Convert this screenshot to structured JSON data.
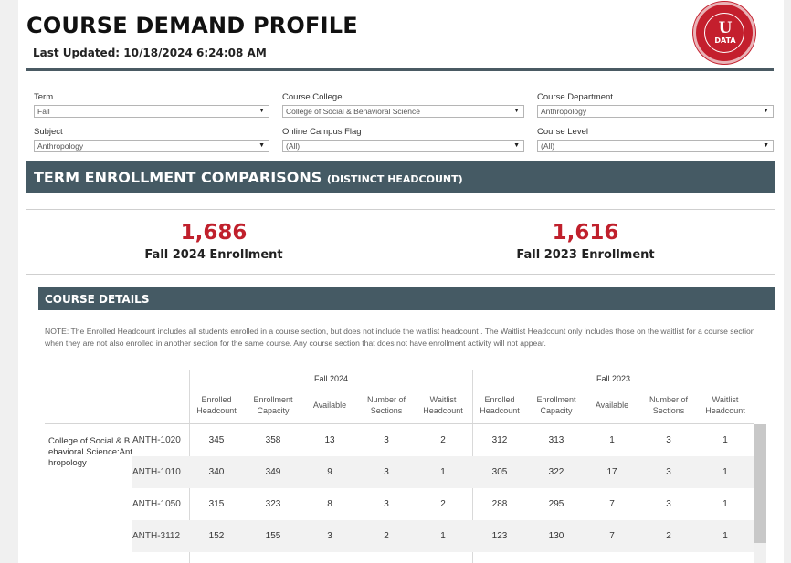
{
  "header": {
    "title": "COURSE DEMAND PROFILE",
    "last_updated": "Last Updated: 10/18/2024 6:24:08 AM",
    "logo": {
      "icon": "university-data-seal-icon",
      "letter": "U",
      "text": "DATA",
      "color": "#c41f2d"
    }
  },
  "filters": [
    {
      "label": "Term",
      "value": "Fall"
    },
    {
      "label": "Course College",
      "value": "College of Social & Behavioral Science"
    },
    {
      "label": "Course Department",
      "value": "Anthropology"
    },
    {
      "label": "Subject",
      "value": "Anthropology"
    },
    {
      "label": "Online Campus  Flag",
      "value": "(All)"
    },
    {
      "label": "Course Level",
      "value": "(All)"
    }
  ],
  "term_section": {
    "title": "TERM ENROLLMENT COMPARISONS",
    "subtitle": "(DISTINCT  HEADCOUNT)",
    "kpis": [
      {
        "value": "1,686",
        "label": "Fall 2024 Enrollment"
      },
      {
        "value": "1,616",
        "label": "Fall 2023 Enrollment"
      }
    ]
  },
  "course_section": {
    "title": "COURSE DETAILS",
    "note": "NOTE: The Enrolled Headcount includes all students enrolled in a course section, but does not include the waitlist headcount . The Waitlist Headcount only includes those on the waitlist for a course section when they are not also enrolled in another section for the same course. Any course section that does not have enrollment activity will not appear."
  },
  "table": {
    "groups": [
      "Fall 2024",
      "Fall 2023"
    ],
    "columns": [
      [
        "Enrolled",
        "Headcount"
      ],
      [
        "Enrollment",
        "Capacity"
      ],
      [
        "Available",
        ""
      ],
      [
        "Number of",
        "Sections"
      ],
      [
        "Waitlist",
        "Headcount"
      ]
    ],
    "college_label": "College of Social & Behavioral Science:Anthropology",
    "rows": [
      {
        "course": "ANTH-1020",
        "values": [
          "345",
          "358",
          "13",
          "3",
          "2",
          "312",
          "313",
          "1",
          "3",
          "1"
        ]
      },
      {
        "course": "ANTH-1010",
        "values": [
          "340",
          "349",
          "9",
          "3",
          "1",
          "305",
          "322",
          "17",
          "3",
          "1"
        ]
      },
      {
        "course": "ANTH-1050",
        "values": [
          "315",
          "323",
          "8",
          "3",
          "2",
          "288",
          "295",
          "7",
          "3",
          "1"
        ]
      },
      {
        "course": "ANTH-3112",
        "values": [
          "152",
          "155",
          "3",
          "2",
          "1",
          "123",
          "130",
          "7",
          "2",
          "1"
        ]
      }
    ]
  },
  "colors": {
    "accent_red": "#c0202c",
    "band": "#455a64",
    "rule": "#4a5a63"
  }
}
